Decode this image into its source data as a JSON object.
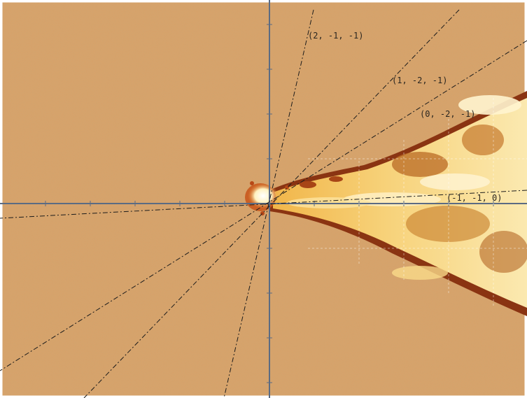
{
  "colors": {
    "background": "#d9a268",
    "crosshair": "#5b6b83",
    "dashed_lines": "#1c1c1c",
    "crystal_highlight": "#fff3c8",
    "crystal_dark_edge": "#7a2a10"
  },
  "labels": {
    "direction_1": "(2, -1, -1)",
    "direction_2": "(1, -2, -1)",
    "direction_3": "(0, -2, -1)",
    "direction_4": "(-1, -1, 0)"
  }
}
